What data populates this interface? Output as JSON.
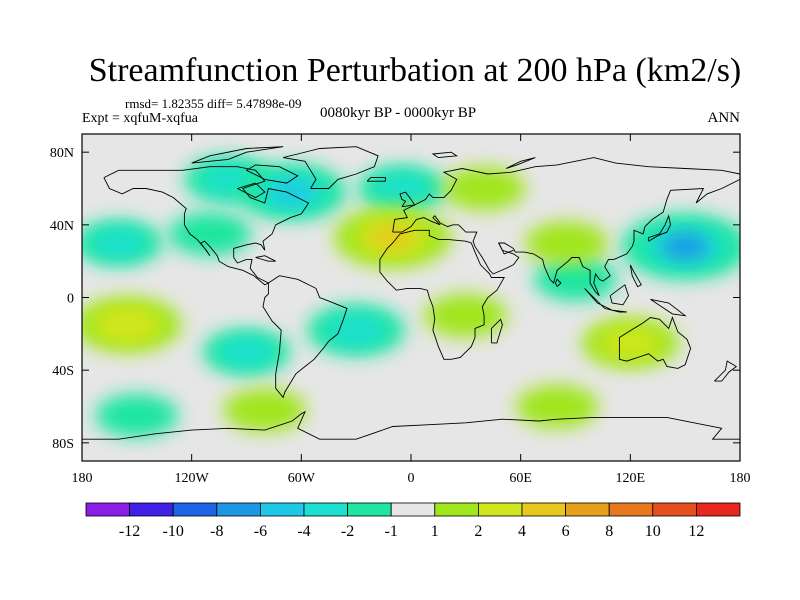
{
  "chart_data": {
    "type": "heatmap",
    "title": "Streamfunction Perturbation at 200 hPa (km2/s)",
    "stats": "rmsd= 1.82355  diff= 5.47898e-09",
    "experiment": "Expt = xqfuM-xqfua",
    "period": "0080kyr BP - 0000kyr BP",
    "season": "ANN",
    "x_range": [
      -180,
      180
    ],
    "y_range": [
      -90,
      90
    ],
    "x_ticks": [
      {
        "value": -180,
        "label": "180"
      },
      {
        "value": -120,
        "label": "120W"
      },
      {
        "value": -60,
        "label": "60W"
      },
      {
        "value": 0,
        "label": "0"
      },
      {
        "value": 60,
        "label": "60E"
      },
      {
        "value": 120,
        "label": "120E"
      },
      {
        "value": 180,
        "label": "180"
      }
    ],
    "y_ticks": [
      {
        "value": 80,
        "label": "80N"
      },
      {
        "value": 40,
        "label": "40N"
      },
      {
        "value": 0,
        "label": "0"
      },
      {
        "value": -40,
        "label": "40S"
      },
      {
        "value": -80,
        "label": "80S"
      }
    ],
    "colorbar": {
      "colors": [
        "#8a1ee6",
        "#4020e6",
        "#1e64e6",
        "#1e96e6",
        "#1ec8e6",
        "#1ee0d0",
        "#1ee6a0",
        "#e6e6e6",
        "#a0e61e",
        "#d0e61e",
        "#e6c81e",
        "#e6a01e",
        "#e6781e",
        "#e6501e",
        "#e6281e"
      ],
      "labels": [
        "-12",
        "-10",
        "-8",
        "-6",
        "-4",
        "-2",
        "-1",
        "1",
        "2",
        "4",
        "6",
        "8",
        "10",
        "12"
      ]
    },
    "anomalies": [
      {
        "lon": -160,
        "lat": 30,
        "value": -2
      },
      {
        "lon": -100,
        "lat": 65,
        "value": -2
      },
      {
        "lon": -65,
        "lat": 58,
        "value": -4
      },
      {
        "lon": -5,
        "lat": 60,
        "value": -2
      },
      {
        "lon": 40,
        "lat": 60,
        "value": 1.5
      },
      {
        "lon": -10,
        "lat": 33,
        "value": 5
      },
      {
        "lon": -110,
        "lat": 35,
        "value": -1.5
      },
      {
        "lon": -155,
        "lat": -15,
        "value": 4
      },
      {
        "lon": -90,
        "lat": -30,
        "value": -2
      },
      {
        "lon": -30,
        "lat": -18,
        "value": -3
      },
      {
        "lon": 30,
        "lat": -10,
        "value": 1.5
      },
      {
        "lon": 90,
        "lat": 10,
        "value": -1.5
      },
      {
        "lon": 150,
        "lat": 28,
        "value": -6
      },
      {
        "lon": 85,
        "lat": 30,
        "value": 1.5
      },
      {
        "lon": 120,
        "lat": -25,
        "value": 3
      },
      {
        "lon": 80,
        "lat": -60,
        "value": 1.5
      },
      {
        "lon": -80,
        "lat": -62,
        "value": 1.5
      },
      {
        "lon": -150,
        "lat": -65,
        "value": -1.5
      }
    ]
  }
}
